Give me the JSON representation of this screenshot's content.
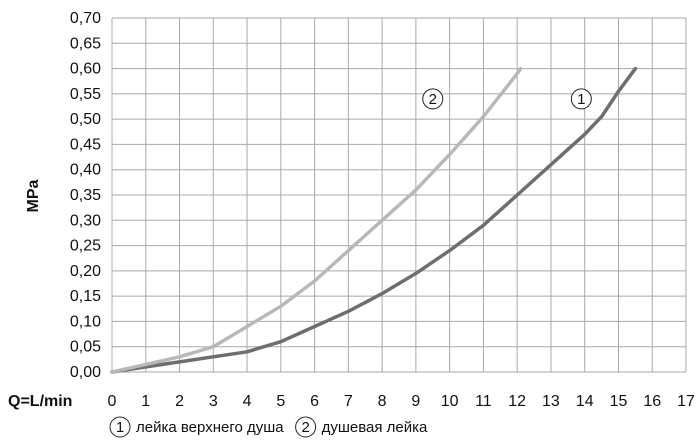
{
  "chart_data": {
    "type": "line",
    "xlabel": "Q=L/min",
    "ylabel": "MPa",
    "xlim": [
      0,
      17
    ],
    "ylim": [
      0,
      0.7
    ],
    "x_ticks": [
      "0",
      "1",
      "2",
      "3",
      "4",
      "5",
      "6",
      "7",
      "8",
      "9",
      "10",
      "11",
      "12",
      "13",
      "14",
      "15",
      "16",
      "17"
    ],
    "y_ticks": [
      "0,00",
      "0,05",
      "0,10",
      "0,15",
      "0,20",
      "0,25",
      "0,30",
      "0,35",
      "0,40",
      "0,45",
      "0,50",
      "0,55",
      "0,60",
      "0,65",
      "0,70"
    ],
    "grid": true,
    "series": [
      {
        "name": "лейка верхнего душа",
        "marker": "1",
        "color": "#6e6e6e",
        "x": [
          0,
          1,
          2,
          3,
          4,
          5,
          6,
          7,
          8,
          9,
          10,
          11,
          12,
          13,
          14,
          14.5,
          15,
          15.5
        ],
        "y": [
          0,
          0.01,
          0.02,
          0.03,
          0.04,
          0.06,
          0.09,
          0.12,
          0.155,
          0.195,
          0.24,
          0.29,
          0.35,
          0.41,
          0.47,
          0.505,
          0.555,
          0.6
        ]
      },
      {
        "name": "душевая лейка",
        "marker": "2",
        "color": "#b8b8b8",
        "x": [
          0,
          1,
          2,
          3,
          4,
          5,
          6,
          7,
          8,
          9,
          10,
          11,
          12,
          12.1
        ],
        "y": [
          0,
          0.015,
          0.03,
          0.05,
          0.09,
          0.13,
          0.18,
          0.24,
          0.3,
          0.36,
          0.43,
          0.505,
          0.59,
          0.6
        ]
      }
    ],
    "annotations": [
      {
        "text": "2",
        "x": 9.5,
        "y": 0.54,
        "series": 1
      },
      {
        "text": "1",
        "x": 13.9,
        "y": 0.54,
        "series": 0
      }
    ],
    "legend": [
      {
        "marker": "1",
        "label": "лейка верхнего душа"
      },
      {
        "marker": "2",
        "label": "душевая лейка"
      }
    ]
  }
}
